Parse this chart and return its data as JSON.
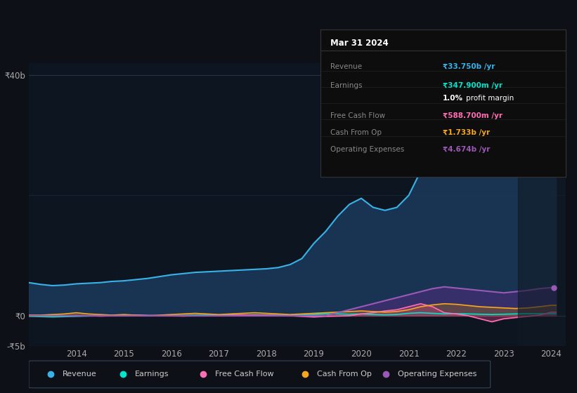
{
  "background_color": "#0d1117",
  "chart_bg": "#0d1520",
  "years": [
    2013,
    2013.25,
    2013.5,
    2013.75,
    2014,
    2014.25,
    2014.5,
    2014.75,
    2015,
    2015.25,
    2015.5,
    2015.75,
    2016,
    2016.25,
    2016.5,
    2016.75,
    2017,
    2017.25,
    2017.5,
    2017.75,
    2018,
    2018.25,
    2018.5,
    2018.75,
    2019,
    2019.25,
    2019.5,
    2019.75,
    2020,
    2020.25,
    2020.5,
    2020.75,
    2021,
    2021.25,
    2021.5,
    2021.75,
    2022,
    2022.25,
    2022.5,
    2022.75,
    2023,
    2023.25,
    2023.5,
    2023.75,
    2024,
    2024.1
  ],
  "revenue": [
    5.5,
    5.2,
    5.0,
    5.1,
    5.3,
    5.4,
    5.5,
    5.7,
    5.8,
    6.0,
    6.2,
    6.5,
    6.8,
    7.0,
    7.2,
    7.3,
    7.4,
    7.5,
    7.6,
    7.7,
    7.8,
    8.0,
    8.5,
    9.5,
    12.0,
    14.0,
    16.5,
    18.5,
    19.5,
    18.0,
    17.5,
    18.0,
    20.0,
    24.0,
    28.0,
    31.0,
    35.0,
    38.0,
    40.0,
    38.0,
    36.5,
    34.0,
    33.5,
    33.0,
    33.75,
    33.75
  ],
  "earnings": [
    -0.1,
    -0.15,
    -0.2,
    -0.15,
    -0.1,
    -0.05,
    0.0,
    0.05,
    0.1,
    0.1,
    0.05,
    0.0,
    0.0,
    0.05,
    0.1,
    0.1,
    0.1,
    0.1,
    0.1,
    0.15,
    0.1,
    0.05,
    0.1,
    0.1,
    0.2,
    0.3,
    0.3,
    0.25,
    0.3,
    0.2,
    0.15,
    0.2,
    0.4,
    0.5,
    0.4,
    0.3,
    0.35,
    0.3,
    0.25,
    0.2,
    0.25,
    0.3,
    0.35,
    0.35,
    0.348,
    0.348
  ],
  "free_cash_flow": [
    0.0,
    0.0,
    0.0,
    0.0,
    0.05,
    0.0,
    -0.05,
    0.0,
    0.0,
    0.1,
    0.05,
    0.0,
    0.0,
    -0.05,
    0.0,
    0.0,
    0.0,
    0.1,
    0.15,
    0.1,
    0.1,
    0.05,
    0.0,
    -0.1,
    -0.2,
    -0.1,
    -0.05,
    0.0,
    0.3,
    0.5,
    0.8,
    1.0,
    1.5,
    2.0,
    1.5,
    0.5,
    0.3,
    0.0,
    -0.5,
    -1.0,
    -0.5,
    -0.3,
    -0.1,
    0.1,
    0.589,
    0.589
  ],
  "cash_from_op": [
    0.1,
    0.1,
    0.2,
    0.3,
    0.5,
    0.3,
    0.2,
    0.1,
    0.2,
    0.1,
    0.0,
    0.1,
    0.2,
    0.3,
    0.4,
    0.3,
    0.2,
    0.3,
    0.4,
    0.5,
    0.4,
    0.3,
    0.2,
    0.3,
    0.4,
    0.5,
    0.6,
    0.7,
    0.8,
    0.7,
    0.6,
    0.7,
    1.0,
    1.5,
    1.8,
    2.0,
    1.9,
    1.7,
    1.5,
    1.4,
    1.3,
    1.2,
    1.3,
    1.5,
    1.733,
    1.733
  ],
  "op_expenses": [
    0.0,
    0.0,
    0.0,
    0.0,
    0.0,
    0.0,
    0.0,
    0.0,
    0.0,
    0.0,
    0.0,
    0.0,
    0.0,
    0.0,
    0.0,
    0.0,
    0.0,
    0.0,
    0.0,
    0.0,
    0.0,
    0.0,
    0.0,
    0.0,
    0.0,
    0.0,
    0.5,
    1.0,
    1.5,
    2.0,
    2.5,
    3.0,
    3.5,
    4.0,
    4.5,
    4.8,
    4.6,
    4.4,
    4.2,
    4.0,
    3.8,
    4.0,
    4.2,
    4.5,
    4.674,
    4.674
  ],
  "revenue_color": "#38b2e8",
  "earnings_color": "#00e5cc",
  "fcf_color": "#ff6eb4",
  "cashop_color": "#f5a623",
  "opex_color": "#9b59b6",
  "revenue_fill": "#1a3a5c",
  "ylim": [
    -5,
    42
  ],
  "xlim": [
    2013.0,
    2024.3
  ],
  "yticks": [
    -5,
    0,
    40
  ],
  "ytick_labels": [
    "-₹5b",
    "₹0",
    "₹40b"
  ],
  "xticks": [
    2014,
    2015,
    2016,
    2017,
    2018,
    2019,
    2020,
    2021,
    2022,
    2023,
    2024
  ],
  "info_box": {
    "title": "Mar 31 2024",
    "rows": [
      {
        "label": "Revenue",
        "value": "₹33.750b /yr",
        "value_color": "#38b2e8"
      },
      {
        "label": "Earnings",
        "value": "₹347.900m /yr",
        "value_color": "#00e5cc"
      },
      {
        "label": "",
        "value": "1.0% profit margin",
        "value_color": "#ffffff"
      },
      {
        "label": "Free Cash Flow",
        "value": "₹588.700m /yr",
        "value_color": "#ff6eb4"
      },
      {
        "label": "Cash From Op",
        "value": "₹1.733b /yr",
        "value_color": "#f5a623"
      },
      {
        "label": "Operating Expenses",
        "value": "₹4.674b /yr",
        "value_color": "#9b59b6"
      }
    ]
  },
  "legend": [
    {
      "label": "Revenue",
      "color": "#38b2e8"
    },
    {
      "label": "Earnings",
      "color": "#00e5cc"
    },
    {
      "label": "Free Cash Flow",
      "color": "#ff6eb4"
    },
    {
      "label": "Cash From Op",
      "color": "#f5a623"
    },
    {
      "label": "Operating Expenses",
      "color": "#9b59b6"
    }
  ]
}
